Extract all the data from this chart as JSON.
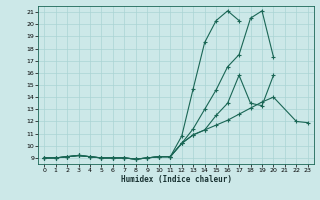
{
  "xlabel": "Humidex (Indice chaleur)",
  "bg_color": "#cce8e8",
  "grid_color": "#aad4d4",
  "line_color": "#1a6655",
  "xlim": [
    -0.5,
    23.5
  ],
  "ylim": [
    8.5,
    21.5
  ],
  "xticks": [
    0,
    1,
    2,
    3,
    4,
    5,
    6,
    7,
    8,
    9,
    10,
    11,
    12,
    13,
    14,
    15,
    16,
    17,
    18,
    19,
    20,
    21,
    22,
    23
  ],
  "yticks": [
    9,
    10,
    11,
    12,
    13,
    14,
    15,
    16,
    17,
    18,
    19,
    20,
    21
  ],
  "series": [
    {
      "x": [
        0,
        1,
        2,
        3,
        4,
        5,
        6,
        7,
        8,
        9,
        10,
        11,
        12,
        13,
        14,
        15,
        16,
        17
      ],
      "y": [
        9.0,
        9.0,
        9.1,
        9.2,
        9.1,
        9.0,
        9.0,
        9.0,
        8.9,
        9.0,
        9.1,
        9.1,
        10.8,
        14.7,
        18.5,
        20.3,
        21.1,
        20.3
      ]
    },
    {
      "x": [
        0,
        1,
        2,
        3,
        4,
        5,
        6,
        7,
        8,
        9,
        10,
        11,
        12,
        13,
        14,
        15,
        16,
        17,
        18,
        19,
        20
      ],
      "y": [
        9.0,
        9.0,
        9.1,
        9.2,
        9.1,
        9.0,
        9.0,
        9.0,
        8.9,
        9.0,
        9.1,
        9.1,
        10.2,
        11.4,
        13.0,
        14.6,
        16.5,
        17.5,
        20.5,
        21.1,
        17.3
      ]
    },
    {
      "x": [
        0,
        1,
        2,
        3,
        4,
        5,
        6,
        7,
        8,
        9,
        10,
        11,
        12,
        13,
        14,
        15,
        16,
        17,
        18,
        19,
        20
      ],
      "y": [
        9.0,
        9.0,
        9.1,
        9.2,
        9.1,
        9.0,
        9.0,
        9.0,
        8.9,
        9.0,
        9.1,
        9.1,
        10.2,
        10.9,
        11.3,
        12.5,
        13.5,
        15.8,
        13.5,
        13.3,
        15.8
      ]
    },
    {
      "x": [
        0,
        1,
        2,
        3,
        4,
        5,
        6,
        7,
        8,
        9,
        10,
        11,
        12,
        13,
        14,
        15,
        16,
        17,
        18,
        19,
        20,
        22,
        23
      ],
      "y": [
        9.0,
        9.0,
        9.1,
        9.2,
        9.1,
        9.0,
        9.0,
        9.0,
        8.9,
        9.0,
        9.1,
        9.1,
        10.2,
        10.9,
        11.3,
        11.7,
        12.1,
        12.6,
        13.1,
        13.6,
        14.0,
        12.0,
        11.9
      ]
    }
  ]
}
